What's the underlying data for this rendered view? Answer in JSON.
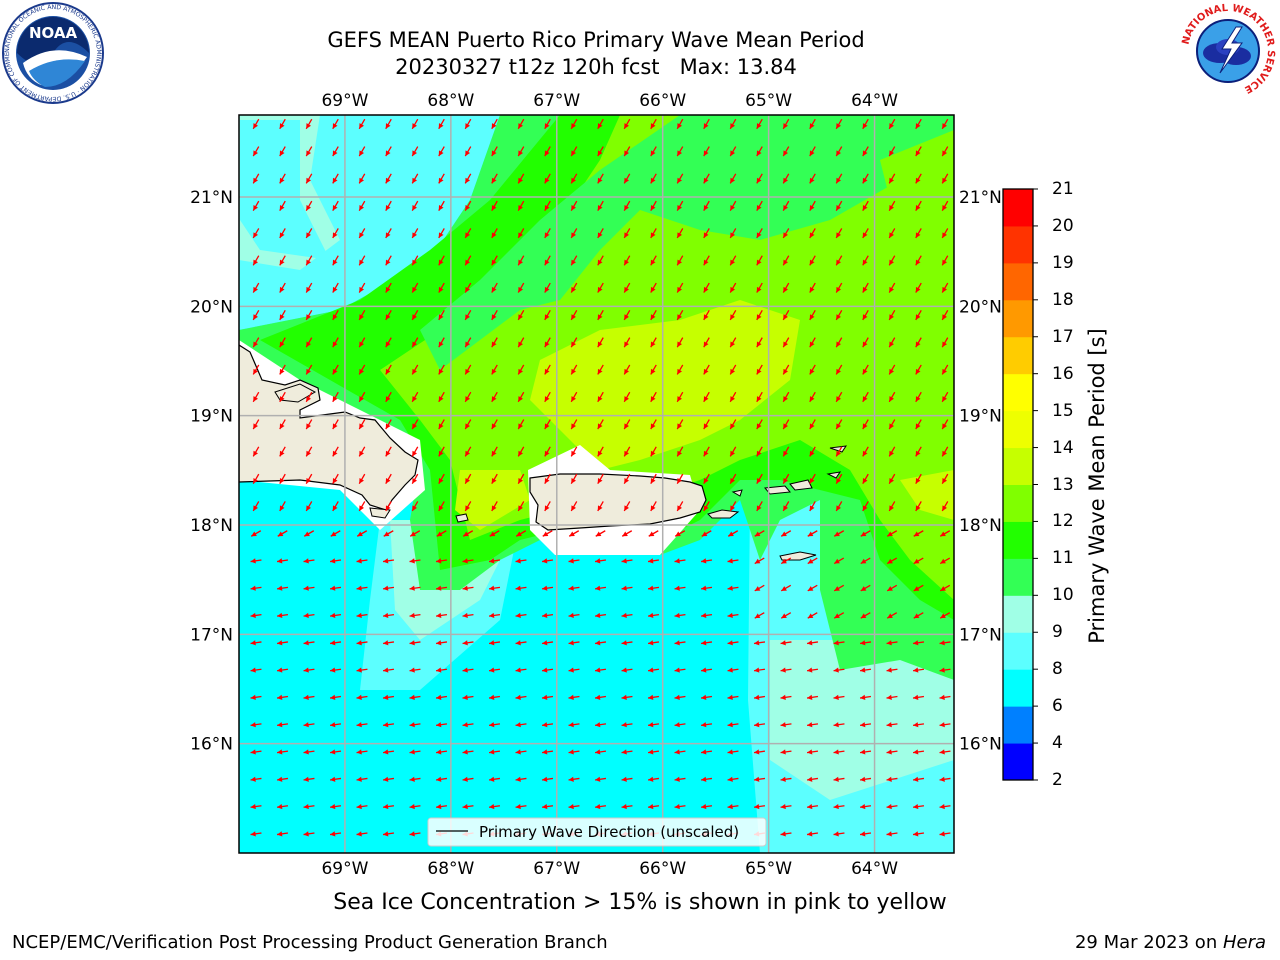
{
  "title": {
    "line1": "GEFS MEAN Puerto Rico Primary Wave Mean Period",
    "line2": "20230327 t12z 120h fcst   Max: 13.84"
  },
  "logos": {
    "noaa_text": "NOAA",
    "noaa_ring": "NATIONAL OCEANIC AND ATMOSPHERIC ADMINISTRATION · U.S. DEPARTMENT OF COMMERCE",
    "nws_ring": "NATIONAL WEATHER SERVICE",
    "noaa_icon": "noaa-seal-icon",
    "nws_icon": "nws-seal-icon"
  },
  "map": {
    "lon_labels": [
      "69°W",
      "68°W",
      "67°W",
      "66°W",
      "65°W",
      "64°W"
    ],
    "lat_labels": [
      "21°N",
      "20°N",
      "19°N",
      "18°N",
      "17°N",
      "16°N"
    ],
    "lon_values": [
      -69,
      -68,
      -67,
      -66,
      -65,
      -64
    ],
    "lat_values": [
      21,
      20,
      19,
      18,
      17,
      16
    ],
    "extent": {
      "lon_min": -70,
      "lon_max": -63.25,
      "lat_min": 15,
      "lat_max": 21.75
    },
    "legend_label": "Primary Wave Direction (unscaled)",
    "arrow_color": "#ff0000",
    "land_color": "#efecdc"
  },
  "colorbar": {
    "label": "Primary Wave Mean Period [s]",
    "ticks": [
      "2",
      "4",
      "6",
      "8",
      "9",
      "10",
      "11",
      "12",
      "13",
      "14",
      "15",
      "16",
      "17",
      "18",
      "19",
      "20",
      "21"
    ],
    "colors": [
      "#0000ff",
      "#0080ff",
      "#00ffff",
      "#5cffff",
      "#a0ffe6",
      "#33ff55",
      "#22ff00",
      "#80ff00",
      "#c6ff00",
      "#eeff00",
      "#ffff00",
      "#ffcc00",
      "#ff9900",
      "#ff6600",
      "#ff3300",
      "#ff0000"
    ]
  },
  "note": "Sea Ice Concentration > 15% is shown in pink to yellow",
  "footer": {
    "left": "NCEP/EMC/Verification Post Processing Product Generation Branch",
    "right_prefix": "29 Mar 2023 on ",
    "right_machine": "Hera"
  }
}
